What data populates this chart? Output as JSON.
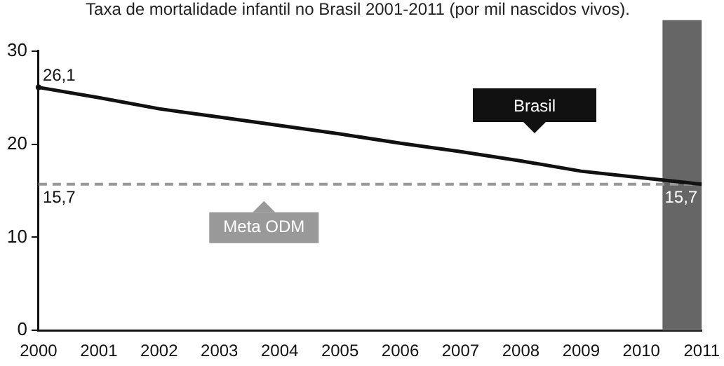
{
  "chart_data": {
    "type": "line",
    "title": "Taxa de mortalidade infantil no Brasil 2001-2011 (por mil nascidos vivos).",
    "x": [
      2000,
      2001,
      2002,
      2003,
      2004,
      2005,
      2006,
      2007,
      2008,
      2009,
      2010,
      2011
    ],
    "series": [
      {
        "name": "Brasil",
        "color": "#111111",
        "values": [
          26.1,
          25.0,
          23.8,
          22.9,
          22.0,
          21.1,
          20.1,
          19.2,
          18.2,
          17.1,
          16.4,
          15.7
        ],
        "value_labels": [
          "26,1",
          null,
          null,
          null,
          null,
          null,
          null,
          null,
          null,
          null,
          null,
          "15,7"
        ]
      }
    ],
    "xlim": [
      2000,
      2011
    ],
    "xticks": [
      2000,
      2001,
      2002,
      2003,
      2004,
      2005,
      2006,
      2007,
      2008,
      2009,
      2010,
      2011
    ],
    "ylim": [
      0,
      30
    ],
    "yticks": [
      0,
      10,
      20,
      30
    ],
    "grid": false,
    "legend": "bottom left",
    "marker": "none",
    "line_style": "solid",
    "ref_lines": [
      {
        "axis": "y",
        "value": 15.7,
        "label": "Meta ODM",
        "color": "#999999",
        "line_style": "dashed"
      }
    ],
    "bands": [
      {
        "axis": "x",
        "from": 2010.35,
        "to": 2011,
        "color": "#666666"
      }
    ],
    "annotations": [
      {
        "text": "15,7",
        "y": 15.7
      }
    ]
  }
}
